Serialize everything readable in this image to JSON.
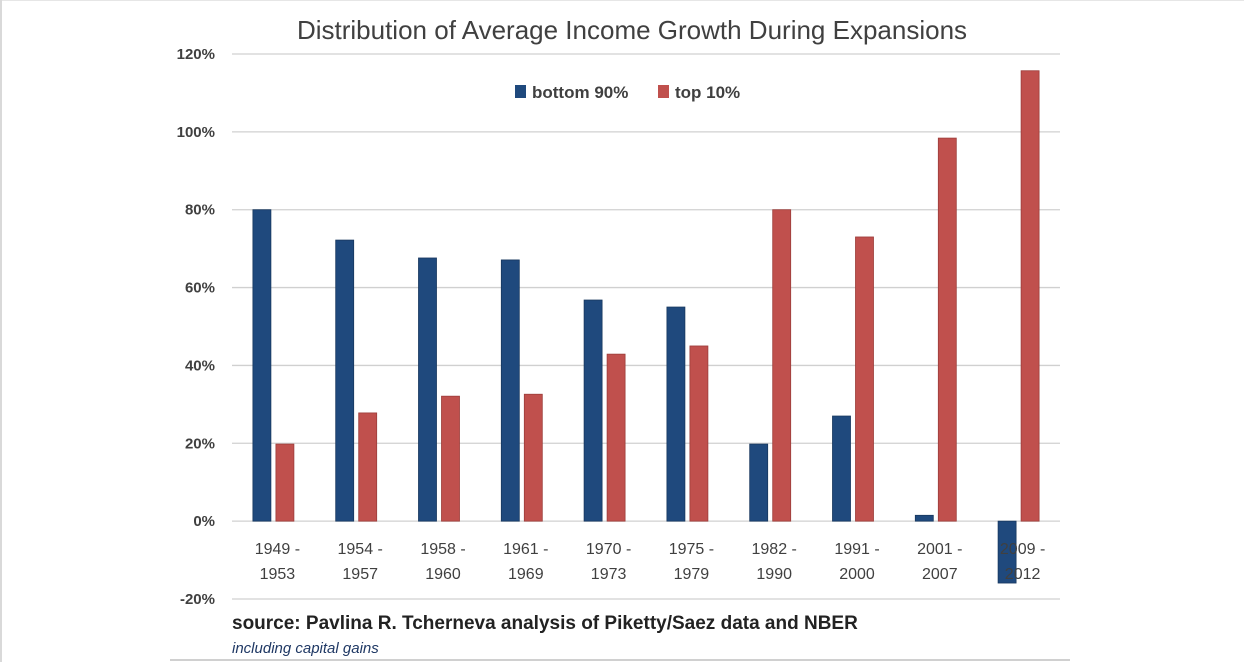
{
  "chart_data": {
    "type": "bar",
    "title": "Distribution of Average Income Growth During Expansions",
    "xlabel": "",
    "ylabel": "",
    "categories": [
      [
        "1949 -",
        "1953"
      ],
      [
        "1954 -",
        "1957"
      ],
      [
        "1958 -",
        "1960"
      ],
      [
        "1961 -",
        "1969"
      ],
      [
        "1970 -",
        "1973"
      ],
      [
        "1975 -",
        "1979"
      ],
      [
        "1982 -",
        "1990"
      ],
      [
        "1991 -",
        "2000"
      ],
      [
        "2001 -",
        "2007"
      ],
      [
        "2009 -",
        "2012"
      ]
    ],
    "series": [
      {
        "name": "bottom 90%",
        "color": "#1f497d",
        "values": [
          80,
          72.2,
          67.6,
          67.1,
          56.8,
          55.0,
          19.8,
          27.0,
          1.5,
          -15.9
        ]
      },
      {
        "name": "top 10%",
        "color": "#c0504d",
        "values": [
          19.8,
          27.8,
          32.1,
          32.6,
          42.9,
          45.0,
          80.0,
          73.0,
          98.4,
          115.7
        ]
      }
    ],
    "ylim": [
      -20,
      120
    ],
    "yticks": [
      120,
      100,
      80,
      60,
      40,
      20,
      0,
      -20
    ],
    "ytick_labels": [
      "120%",
      "100%",
      "80%",
      "60%",
      "40%",
      "20%",
      "0%",
      "-20%"
    ],
    "grid": true,
    "legend_position": "top-center",
    "annotations": {
      "source": "source: Pavlina R. Tcherneva analysis of Piketty/Saez data and NBER",
      "note": "including capital gains"
    }
  },
  "colors": {
    "gridline": "#d0d0d0",
    "text": "#404040"
  }
}
